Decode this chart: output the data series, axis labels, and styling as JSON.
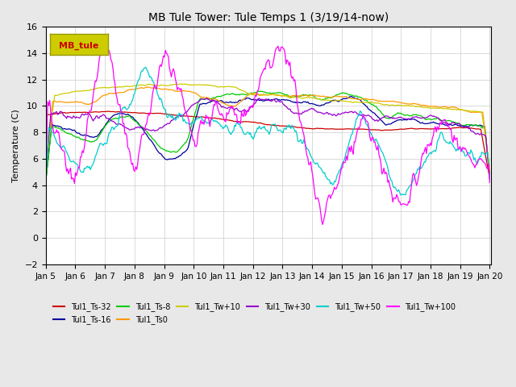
{
  "title": "MB Tule Tower: Tule Temps 1 (3/19/14-now)",
  "ylabel": "Temperature (C)",
  "xlabel": "",
  "ylim": [
    -2,
    16
  ],
  "yticks": [
    -2,
    0,
    2,
    4,
    6,
    8,
    10,
    12,
    14,
    16
  ],
  "xlim": [
    0,
    450
  ],
  "xtick_labels": [
    "Jan 5",
    "Jan 6",
    "Jan 7",
    "Jan 8",
    "Jan 9",
    "Jan 10",
    "Jan 11",
    "Jan 12",
    "Jan 13",
    "Jan 14",
    "Jan 15",
    "Jan 16",
    "Jan 17",
    "Jan 18",
    "Jan 19",
    "Jan 20"
  ],
  "legend_box_label": "MB_tule",
  "legend_box_color": "#cccc00",
  "legend_box_text_color": "#cc0000",
  "background_color": "#e8e8e8",
  "plot_bg_color": "#ffffff",
  "series": [
    {
      "label": "Tul1_Ts-32",
      "color": "#cc0000"
    },
    {
      "label": "Tul1_Ts-16",
      "color": "#000099"
    },
    {
      "label": "Tul1_Ts-8",
      "color": "#00cc00"
    },
    {
      "label": "Tul1_Ts0",
      "color": "#ff9900"
    },
    {
      "label": "Tul1_Tw+10",
      "color": "#cccc00"
    },
    {
      "label": "Tul1_Tw+30",
      "color": "#9900cc"
    },
    {
      "label": "Tul1_Tw+50",
      "color": "#00cccc"
    },
    {
      "label": "Tul1_Tw+100",
      "color": "#ff00ff"
    }
  ]
}
